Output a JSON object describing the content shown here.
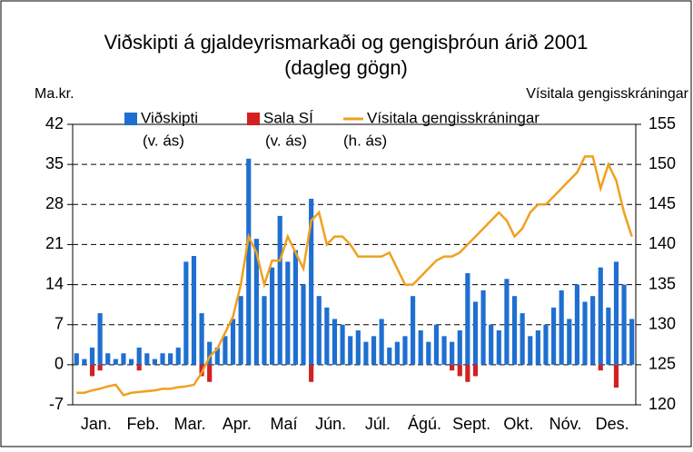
{
  "chart_data": {
    "type": "bar-line",
    "title": "Viðskipti á gjaldeyrismarkaði og gengisþróun árið 2001",
    "subtitle": "(dagleg gögn)",
    "y_label": "Ma.kr.",
    "y2_label": "Vísitala gengisskráningar",
    "months": [
      "Jan.",
      "Feb.",
      "Mar.",
      "Apr.",
      "Maí",
      "Jún.",
      "Júl.",
      "Ágú.",
      "Sept.",
      "Okt.",
      "Nóv.",
      "Des."
    ],
    "ylim": [
      -7,
      42
    ],
    "yticks": [
      -7,
      0,
      7,
      14,
      21,
      28,
      35,
      42
    ],
    "y2lim": [
      120,
      155
    ],
    "y2ticks": [
      120,
      125,
      130,
      135,
      140,
      145,
      150,
      155
    ],
    "grid": true,
    "series": [
      {
        "name": "Viðskipti",
        "note_label": "(v. ás)",
        "color": "#1f6fd1",
        "type": "bar",
        "values": [
          2,
          1,
          3,
          9,
          2,
          1,
          2,
          1,
          3,
          2,
          1,
          2,
          2,
          3,
          18,
          19,
          9,
          4,
          3,
          5,
          8,
          12,
          36,
          22,
          12,
          17,
          26,
          18,
          20,
          14,
          29,
          12,
          10,
          8,
          7,
          5,
          6,
          4,
          5,
          8,
          3,
          4,
          5,
          12,
          6,
          4,
          7,
          5,
          4,
          6,
          16,
          11,
          13,
          7,
          6,
          15,
          12,
          9,
          5,
          6,
          7,
          10,
          13,
          8,
          14,
          11,
          12,
          17,
          10,
          18,
          14,
          8
        ]
      },
      {
        "name": "Sala SÍ",
        "note_label": "(v. ás)",
        "color": "#d42020",
        "type": "bar",
        "values": [
          0,
          0,
          -2,
          -1,
          0,
          0,
          0,
          0,
          -1,
          0,
          0,
          0,
          0,
          0,
          0,
          0,
          -2,
          -3,
          0,
          0,
          0,
          0,
          0,
          0,
          0,
          0,
          0,
          0,
          0,
          0,
          -3,
          0,
          0,
          0,
          0,
          0,
          0,
          0,
          0,
          0,
          0,
          0,
          0,
          0,
          0,
          0,
          0,
          0,
          -1,
          -2,
          -3,
          -2,
          0,
          0,
          0,
          0,
          0,
          0,
          0,
          0,
          0,
          0,
          0,
          0,
          0,
          0,
          0,
          -1,
          0,
          -4,
          0,
          0
        ]
      },
      {
        "name": "Vísitala gengisskráningar",
        "note_label": "(h. ás)",
        "color": "#f0a020",
        "type": "line",
        "axis": "y2",
        "values": [
          121.5,
          121.5,
          121.8,
          122,
          122.3,
          122.5,
          121.2,
          121.5,
          121.6,
          121.7,
          121.8,
          122,
          122,
          122.2,
          122.3,
          122.5,
          124,
          126,
          127,
          129,
          131,
          135,
          141,
          139,
          135,
          138,
          138,
          141,
          139,
          137,
          143,
          144,
          140,
          141,
          141,
          140,
          138.5,
          138.5,
          138.5,
          138.5,
          139,
          137,
          135,
          135,
          136,
          137,
          138,
          138.5,
          138.5,
          139,
          140,
          141,
          142,
          143,
          144,
          143,
          141,
          142,
          144,
          145,
          145,
          146,
          147,
          148,
          149,
          151,
          151,
          147,
          150,
          148,
          144,
          141
        ]
      }
    ]
  }
}
